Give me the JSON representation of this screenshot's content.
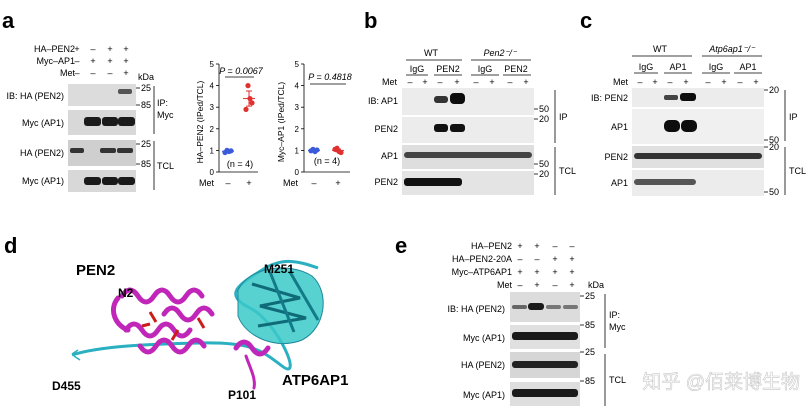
{
  "panels": {
    "a": {
      "letter": "a",
      "conditions": [
        {
          "label": "HA–PEN2",
          "signs": [
            "+",
            "–",
            "+",
            "+"
          ]
        },
        {
          "label": "Myc–AP1",
          "signs": [
            "–",
            "+",
            "+",
            "+"
          ]
        },
        {
          "label": "Met",
          "signs": [
            "–",
            "–",
            "–",
            "+"
          ]
        }
      ],
      "kda": "kDa",
      "blot_labels": [
        "IB: HA (PEN2)",
        "Myc (AP1)",
        "HA (PEN2)",
        "Myc (AP1)"
      ],
      "markers": [
        "25",
        "85",
        "25",
        "85"
      ],
      "group_labels": [
        "IP:",
        "Myc",
        "TCL"
      ],
      "chart1": {
        "ylabel": "HA–PEN2 (IPed/TCL)",
        "pvalue": "P = 0.0067",
        "n": "(n = 4)",
        "ticks": [
          "0",
          "1",
          "2",
          "3",
          "4",
          "5"
        ]
      },
      "chart2": {
        "ylabel": "Myc–AP1 (IPed/TCL)",
        "pvalue": "P = 0.4818",
        "n": "(n = 4)",
        "ticks": [
          "0",
          "1",
          "2",
          "3",
          "4",
          "5"
        ]
      },
      "met_row": {
        "label": "Met",
        "signs": [
          "–",
          "+"
        ]
      }
    },
    "b": {
      "letter": "b",
      "groups": [
        "WT",
        "Pen2⁻/⁻"
      ],
      "ip_labels": [
        "IgG",
        "PEN2",
        "IgG",
        "PEN2"
      ],
      "met_label": "Met",
      "met_signs": [
        "–",
        "+",
        "–",
        "+",
        "–",
        "+",
        "–",
        "+"
      ],
      "blot_labels": [
        "IB: AP1",
        "PEN2",
        "AP1",
        "PEN2"
      ],
      "markers": [
        "50",
        "20",
        "50",
        "20"
      ],
      "group_labels": [
        "IP",
        "TCL"
      ]
    },
    "c": {
      "letter": "c",
      "groups": [
        "WT",
        "Atp6ap1⁻/⁻"
      ],
      "ip_labels": [
        "IgG",
        "AP1",
        "IgG",
        "AP1"
      ],
      "met_label": "Met",
      "met_signs": [
        "–",
        "+",
        "–",
        "+",
        "–",
        "+",
        "–",
        "+"
      ],
      "blot_labels": [
        "IB: PEN2",
        "AP1",
        "PEN2",
        "AP1"
      ],
      "markers": [
        "20",
        "50",
        "20",
        "50"
      ],
      "group_labels": [
        "IP",
        "TCL"
      ]
    },
    "d": {
      "letter": "d",
      "labels": [
        "PEN2",
        "N2",
        "M251",
        "D455",
        "P101",
        "ATP6AP1"
      ]
    },
    "e": {
      "letter": "e",
      "conditions": [
        {
          "label": "HA–PEN2",
          "signs": [
            "+",
            "+",
            "–",
            "–"
          ]
        },
        {
          "label": "HA–PEN2-20A",
          "signs": [
            "–",
            "–",
            "+",
            "+"
          ]
        },
        {
          "label": "Myc–ATP6AP1",
          "signs": [
            "+",
            "+",
            "+",
            "+"
          ]
        },
        {
          "label": "Met",
          "signs": [
            "–",
            "+",
            "–",
            "+"
          ]
        }
      ],
      "kda": "kDa",
      "blot_labels": [
        "IB: HA (PEN2)",
        "Myc (AP1)",
        "HA (PEN2)",
        "Myc (AP1)"
      ],
      "markers": [
        "25",
        "85",
        "25",
        "85"
      ],
      "group_labels": [
        "IP:",
        "Myc",
        "TCL"
      ]
    }
  },
  "chart_data": [
    {
      "type": "scatter",
      "title": "",
      "ylabel": "HA–PEN2 (IPed/TCL)",
      "ylim": [
        0,
        5
      ],
      "categories": [
        "–",
        "+"
      ],
      "points": [
        [
          1.0,
          0.95,
          0.9,
          0.98
        ],
        [
          4.0,
          3.4,
          2.9,
          3.2
        ]
      ],
      "means": [
        0.96,
        3.4
      ],
      "errors": [
        0.05,
        0.35
      ],
      "colors": [
        "#3b5bdb",
        "#e03131"
      ],
      "annotation": "P = 0.0067"
    },
    {
      "type": "scatter",
      "title": "",
      "ylabel": "Myc–AP1 (IPed/TCL)",
      "ylim": [
        0,
        5
      ],
      "categories": [
        "–",
        "+"
      ],
      "points": [
        [
          1.05,
          0.95,
          0.98,
          1.02
        ],
        [
          1.1,
          0.95,
          1.05,
          0.9
        ]
      ],
      "means": [
        1.0,
        1.0
      ],
      "errors": [
        0.04,
        0.06
      ],
      "colors": [
        "#3b5bdb",
        "#e03131"
      ],
      "annotation": "P = 0.4818"
    }
  ],
  "watermark": "知乎 @佰莱博生物"
}
